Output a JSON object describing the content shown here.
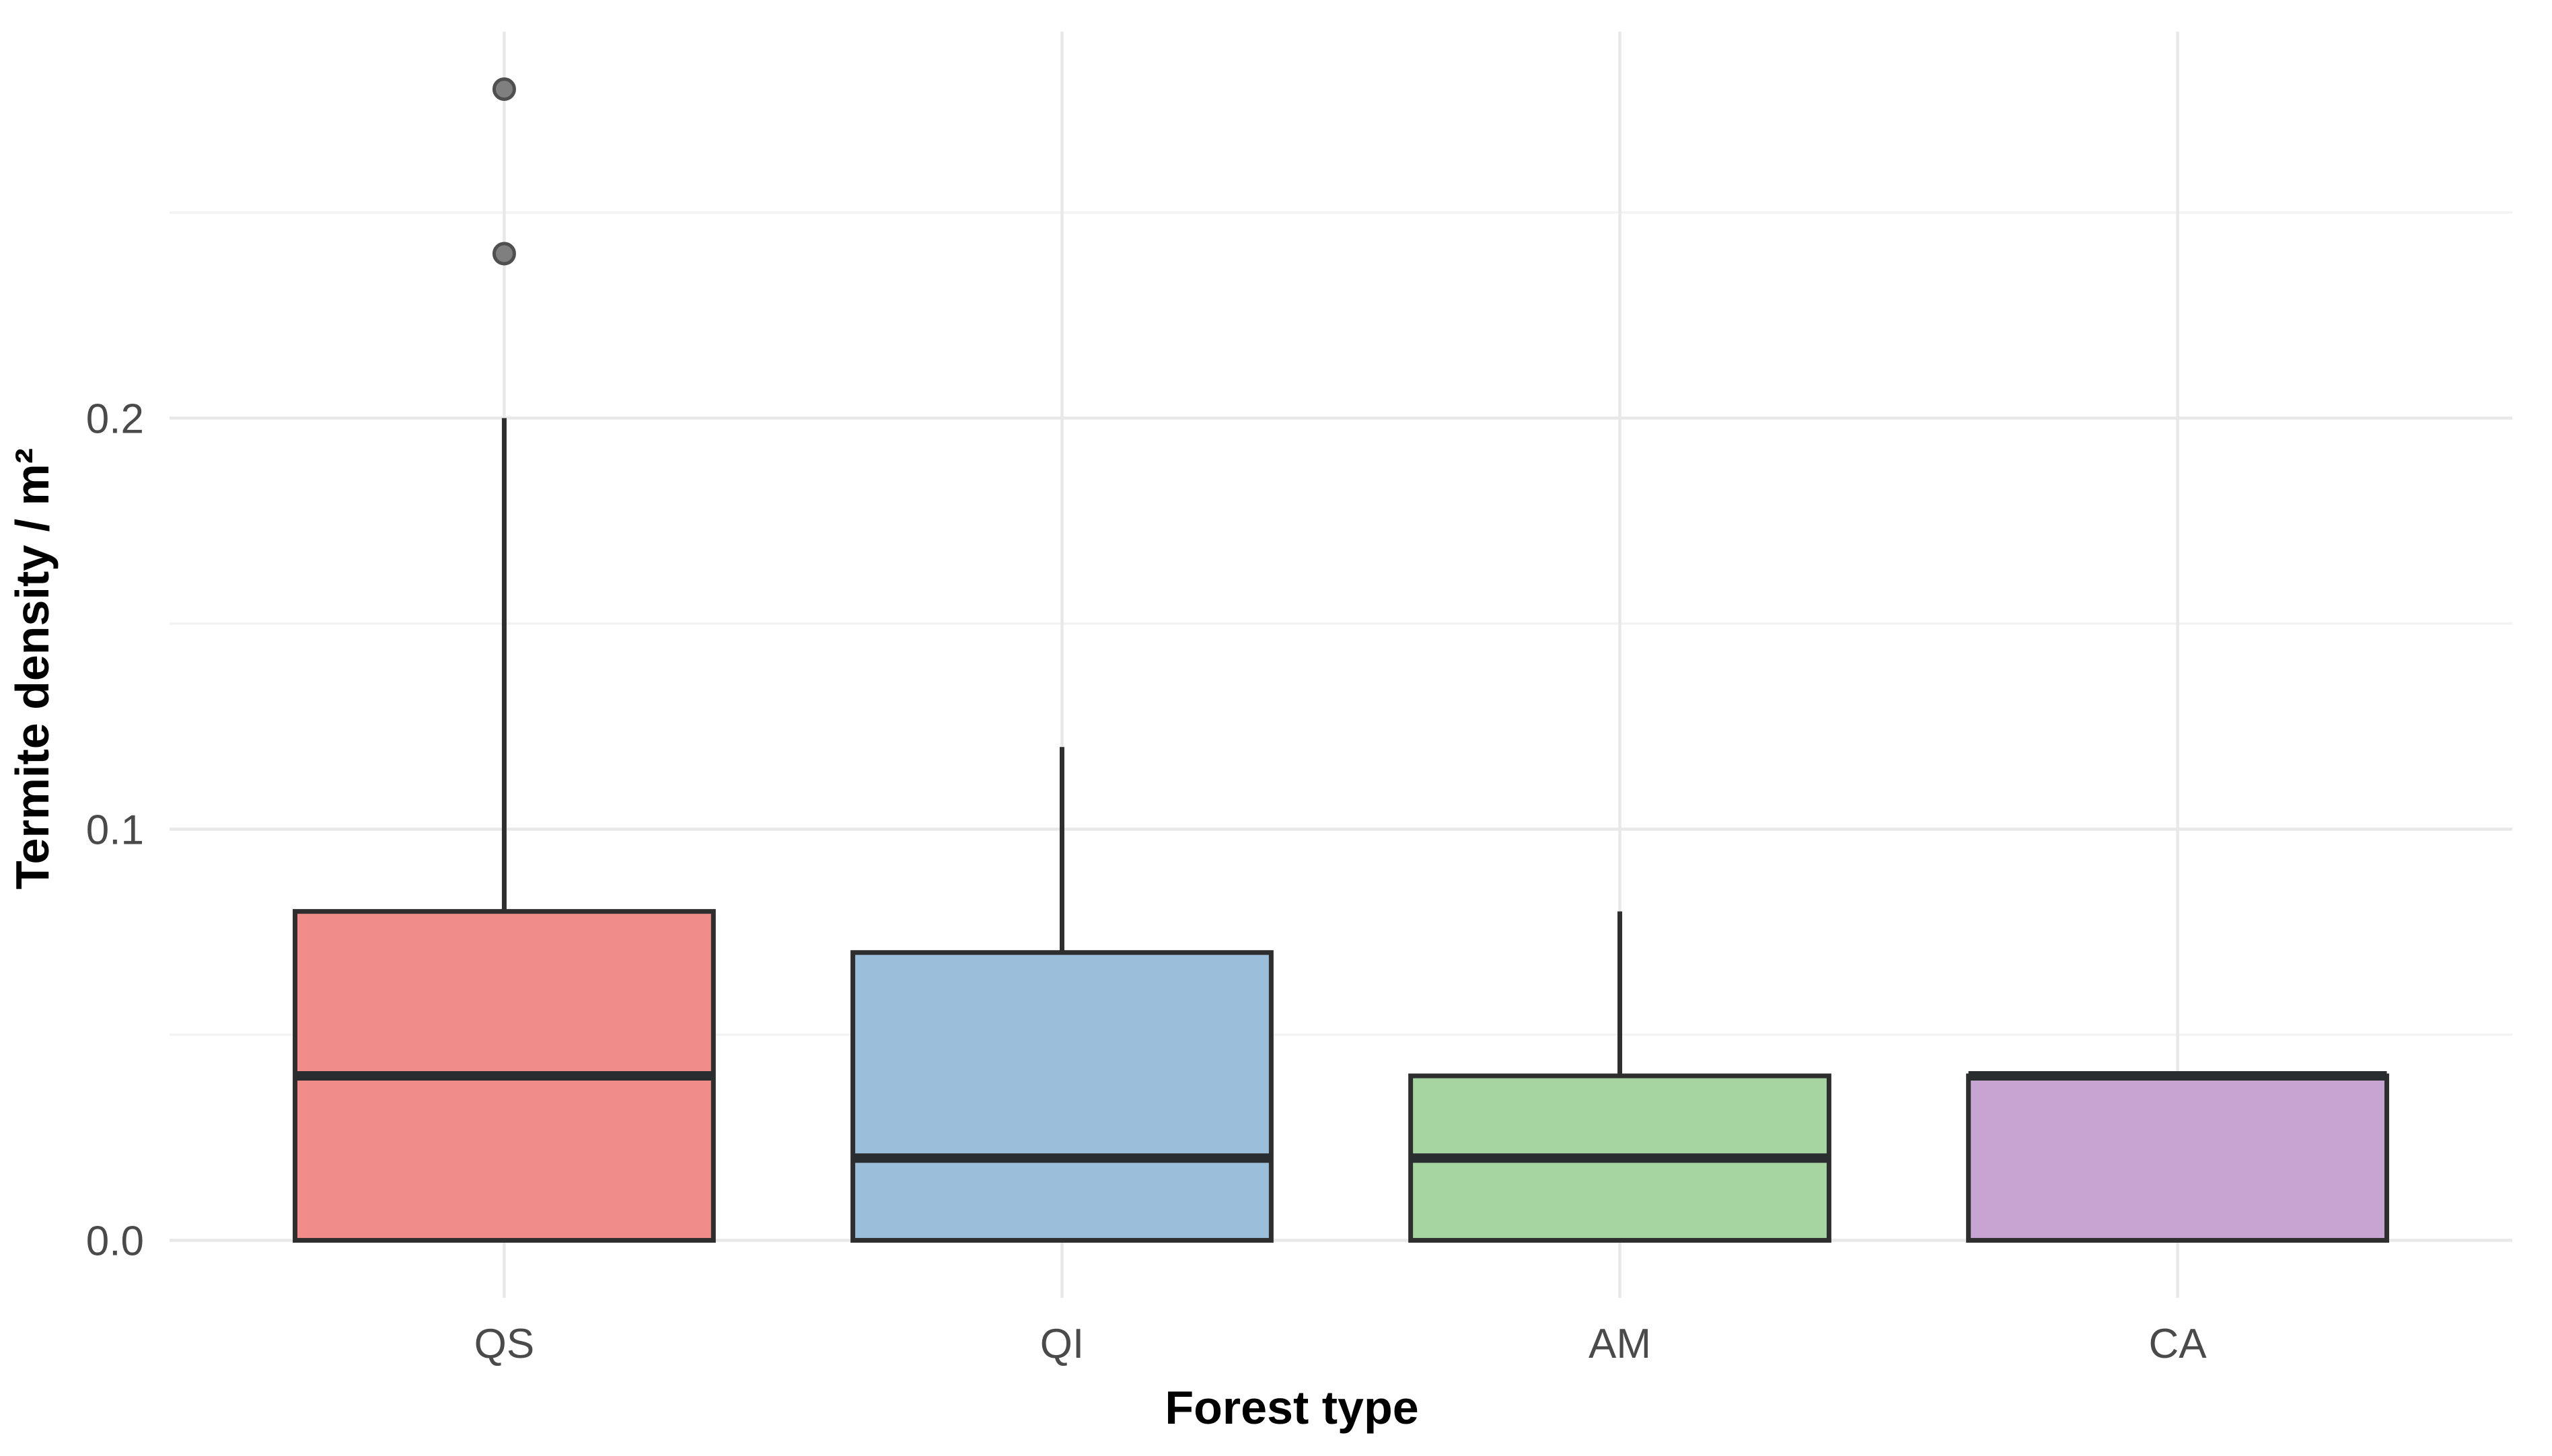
{
  "chart_data": {
    "type": "boxplot",
    "title": "",
    "xlabel": "Forest type",
    "ylabel": "Termite density / m²",
    "categories": [
      "QS",
      "QI",
      "AM",
      "CA"
    ],
    "series": [
      {
        "category": "QS",
        "fill": "#f08c8a",
        "lower_whisker": 0.0,
        "q1": 0.0,
        "median": 0.04,
        "q3": 0.08,
        "upper_whisker": 0.2,
        "outliers": [
          0.24,
          0.28
        ]
      },
      {
        "category": "QI",
        "fill": "#9bbedb",
        "lower_whisker": 0.0,
        "q1": 0.0,
        "median": 0.02,
        "q3": 0.07,
        "upper_whisker": 0.12,
        "outliers": []
      },
      {
        "category": "AM",
        "fill": "#a6d5a1",
        "lower_whisker": 0.0,
        "q1": 0.0,
        "median": 0.02,
        "q3": 0.04,
        "upper_whisker": 0.08,
        "outliers": []
      },
      {
        "category": "CA",
        "fill": "#c8a4d2",
        "lower_whisker": 0.0,
        "q1": 0.0,
        "median": 0.04,
        "q3": 0.04,
        "upper_whisker": 0.04,
        "outliers": []
      }
    ],
    "y_ticks": [
      {
        "value": 0.0,
        "label": "0.0"
      },
      {
        "value": 0.1,
        "label": "0.1"
      },
      {
        "value": 0.2,
        "label": "0.2"
      }
    ],
    "y_minor_ticks": [
      0.05,
      0.15,
      0.25
    ],
    "ylim": [
      -0.014,
      0.294
    ],
    "grid": "horizontal major+minor; vertical major at category centers",
    "legend_position": "none",
    "colors": {
      "background": "#ffffff",
      "box_border": "#2e2e2e",
      "median_line": "#2a2d30",
      "whisker": "#2e2e2e",
      "outlier_fill": "#7f7f7f",
      "outlier_stroke": "#4f4f4f",
      "grid_major": "#e8e8e8",
      "grid_minor": "#f3f3f3",
      "tick_label": "#4a4a4a",
      "axis_title": "#000000"
    }
  }
}
